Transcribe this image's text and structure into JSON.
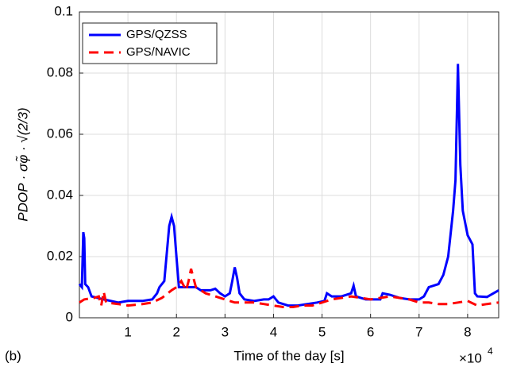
{
  "chart_data": {
    "type": "line",
    "x_label": "Time of the day [s]",
    "y_label": "PDOP · σφ̃ · √(2/3)",
    "panel_label": "(b)",
    "x_offset_text": {
      "base": "×10",
      "exponent": "4"
    },
    "xlim": [
      0,
      86400
    ],
    "xticks": [
      {
        "value": 10000,
        "label": "1"
      },
      {
        "value": 20000,
        "label": "2"
      },
      {
        "value": 30000,
        "label": "3"
      },
      {
        "value": 40000,
        "label": "4"
      },
      {
        "value": 50000,
        "label": "5"
      },
      {
        "value": 60000,
        "label": "6"
      },
      {
        "value": 70000,
        "label": "7"
      },
      {
        "value": 80000,
        "label": "8"
      }
    ],
    "ylim": [
      0,
      0.1
    ],
    "yticks": [
      0,
      0.02,
      0.04,
      0.06,
      0.08,
      0.1
    ],
    "grid": true,
    "legend": "upper left",
    "series": [
      {
        "name": "GPS/QZSS",
        "color": "#0000ff",
        "style": "solid",
        "x": [
          0,
          500,
          800,
          1000,
          1200,
          1800,
          2500,
          5000,
          8000,
          10000,
          13000,
          15000,
          16000,
          16500,
          17500,
          18500,
          19000,
          19500,
          20000,
          20500,
          22000,
          24000,
          25000,
          27000,
          28000,
          29000,
          30000,
          31000,
          31500,
          32000,
          32500,
          33000,
          34000,
          36000,
          38000,
          39000,
          40000,
          41000,
          43000,
          45000,
          47000,
          49000,
          50500,
          51000,
          52000,
          54000,
          56000,
          56500,
          57000,
          59000,
          61000,
          62000,
          62500,
          64000,
          66000,
          68000,
          70000,
          71000,
          72000,
          74000,
          75000,
          76000,
          77000,
          77500,
          78000,
          78500,
          79000,
          80000,
          81000,
          81500,
          82000,
          84000,
          86400
        ],
        "values": [
          0.011,
          0.01,
          0.028,
          0.026,
          0.011,
          0.01,
          0.007,
          0.006,
          0.005,
          0.0055,
          0.0055,
          0.006,
          0.008,
          0.01,
          0.012,
          0.03,
          0.033,
          0.03,
          0.02,
          0.01,
          0.01,
          0.01,
          0.009,
          0.009,
          0.0095,
          0.008,
          0.007,
          0.008,
          0.012,
          0.0165,
          0.013,
          0.008,
          0.006,
          0.0055,
          0.006,
          0.006,
          0.007,
          0.005,
          0.004,
          0.004,
          0.0045,
          0.005,
          0.0055,
          0.008,
          0.007,
          0.007,
          0.008,
          0.0105,
          0.007,
          0.006,
          0.006,
          0.006,
          0.008,
          0.0075,
          0.0065,
          0.006,
          0.006,
          0.007,
          0.01,
          0.011,
          0.014,
          0.02,
          0.035,
          0.045,
          0.083,
          0.05,
          0.035,
          0.027,
          0.024,
          0.008,
          0.007,
          0.0068,
          0.009
        ]
      },
      {
        "name": "GPS/NAVIC",
        "color": "#ff0000",
        "style": "dashed",
        "x": [
          0,
          1000,
          3000,
          4000,
          4500,
          5000,
          5500,
          8000,
          10000,
          13000,
          15000,
          17000,
          19000,
          20000,
          21000,
          22000,
          22500,
          23000,
          23500,
          24000,
          26000,
          28000,
          30000,
          32000,
          34000,
          36000,
          38000,
          40000,
          42000,
          44000,
          46000,
          48000,
          50000,
          52000,
          54000,
          56000,
          58000,
          60000,
          62000,
          64000,
          66000,
          68000,
          70000,
          72000,
          74000,
          76000,
          78000,
          80000,
          82000,
          84000,
          86400
        ],
        "values": [
          0.005,
          0.006,
          0.0065,
          0.007,
          0.004,
          0.0085,
          0.005,
          0.0045,
          0.004,
          0.0045,
          0.005,
          0.0065,
          0.009,
          0.01,
          0.012,
          0.009,
          0.012,
          0.016,
          0.013,
          0.01,
          0.008,
          0.007,
          0.006,
          0.005,
          0.005,
          0.005,
          0.0045,
          0.004,
          0.0035,
          0.0035,
          0.004,
          0.004,
          0.005,
          0.006,
          0.0065,
          0.007,
          0.0065,
          0.006,
          0.0065,
          0.007,
          0.0065,
          0.006,
          0.005,
          0.005,
          0.0045,
          0.0045,
          0.005,
          0.0055,
          0.004,
          0.0045,
          0.005
        ]
      }
    ]
  }
}
